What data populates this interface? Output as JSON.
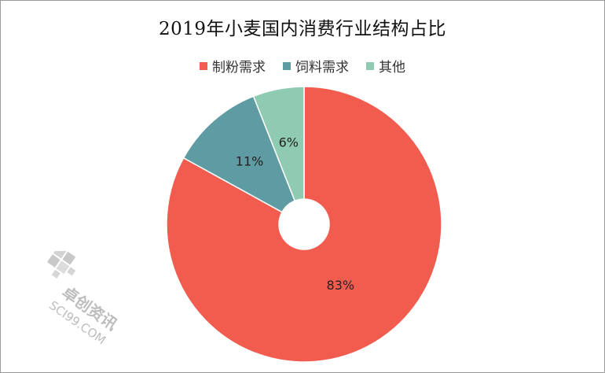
{
  "chart_data": {
    "type": "pie",
    "donut": true,
    "title": "2019年小麦国内消费行业结构占比",
    "categories": [
      "制粉需求",
      "饲料需求",
      "其他"
    ],
    "values": [
      83,
      11,
      6
    ],
    "labels": [
      "83%",
      "11%",
      "6%"
    ],
    "colors": [
      "#F25C4E",
      "#5E9BA3",
      "#8FCBB0"
    ],
    "legend": "top"
  },
  "watermark": {
    "brand": "卓创资讯",
    "domain": "SCI99.COM",
    "color": "#c4c4c4"
  }
}
